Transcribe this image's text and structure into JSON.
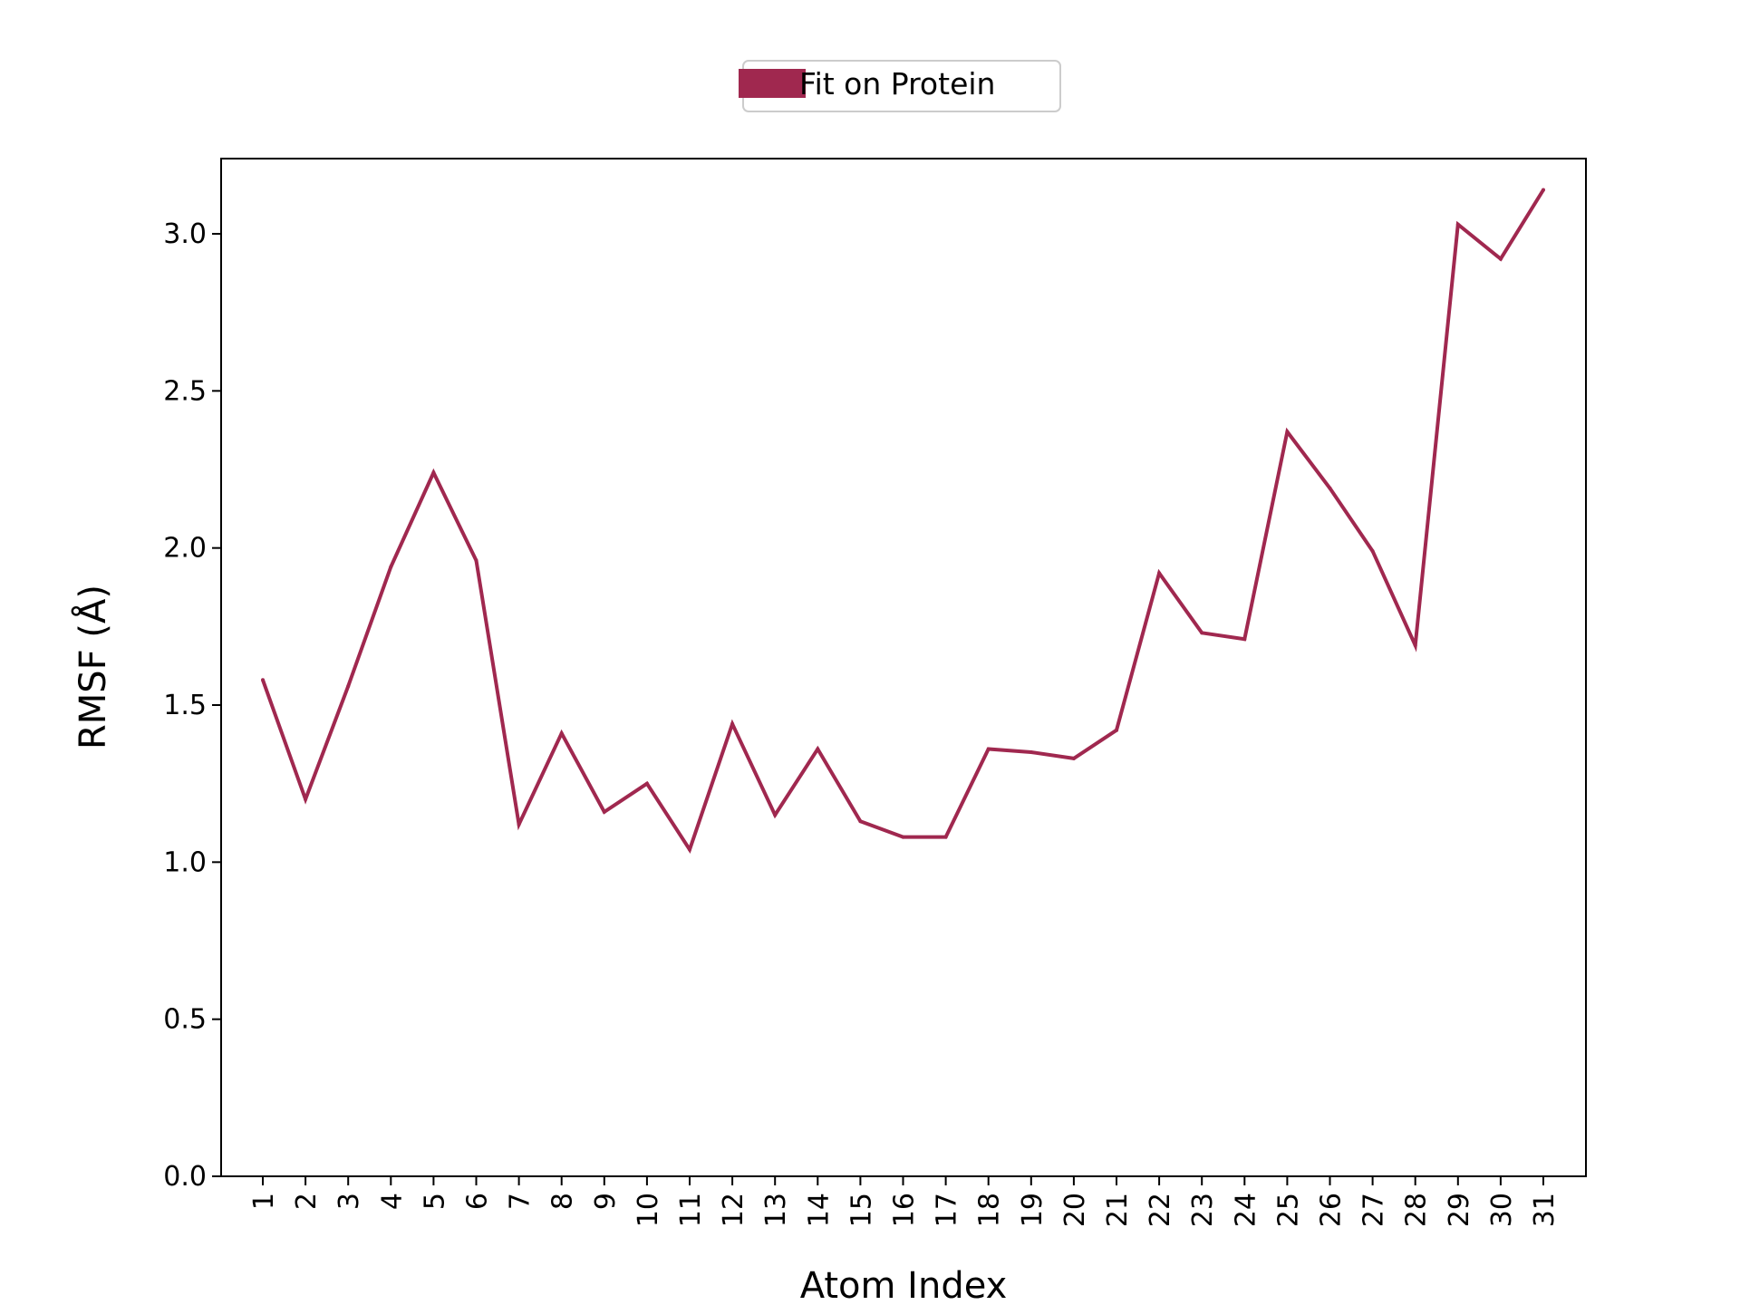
{
  "chart_data": {
    "type": "line",
    "title": "",
    "xlabel": "Atom Index",
    "ylabel": "RMSF (Å)",
    "ylim": [
      0,
      3.25
    ],
    "yticks": [
      "0.0",
      "0.5",
      "1.0",
      "1.5",
      "2.0",
      "2.5",
      "3.0"
    ],
    "categories": [
      "1",
      "2",
      "3",
      "4",
      "5",
      "6",
      "7",
      "8",
      "9",
      "10",
      "11",
      "12",
      "13",
      "14",
      "15",
      "16",
      "17",
      "18",
      "19",
      "20",
      "21",
      "22",
      "23",
      "24",
      "25",
      "26",
      "27",
      "28",
      "29",
      "30",
      "31"
    ],
    "series": [
      {
        "name": "Fit on Protein",
        "color": "#a0284f",
        "values": [
          1.58,
          1.2,
          1.56,
          1.94,
          2.24,
          1.96,
          1.12,
          1.41,
          1.16,
          1.25,
          1.04,
          1.44,
          1.15,
          1.36,
          1.13,
          1.08,
          1.08,
          1.36,
          1.35,
          1.33,
          1.42,
          1.92,
          1.73,
          1.71,
          2.37,
          2.19,
          1.99,
          1.69,
          3.03,
          2.92,
          3.14
        ]
      }
    ],
    "legend_position": "top-center",
    "grid": false
  }
}
